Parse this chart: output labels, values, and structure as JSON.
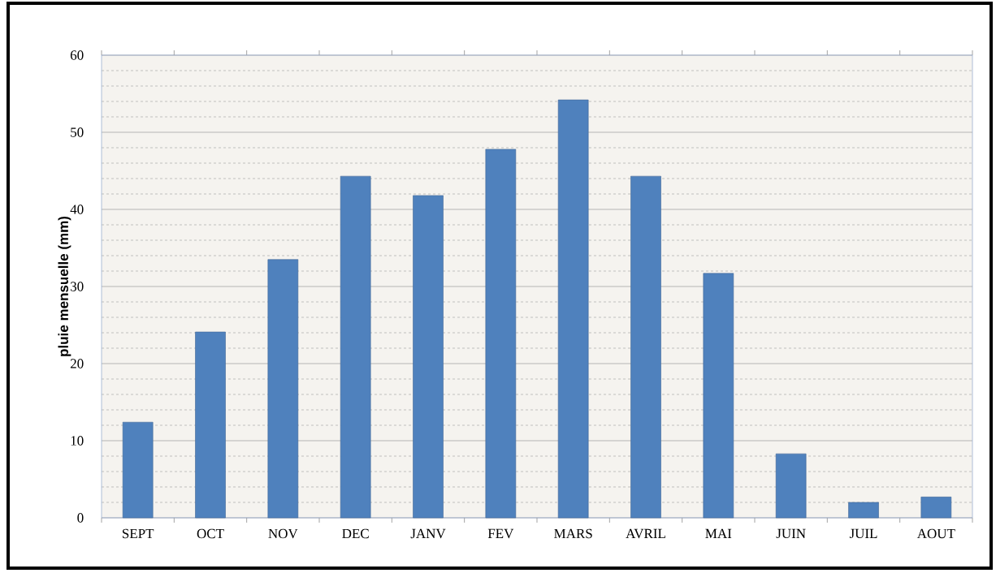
{
  "chart_data": {
    "type": "bar",
    "ylabel": "pluie mensuelle (mm)",
    "categories": [
      "SEPT",
      "OCT",
      "NOV",
      "DEC",
      "JANV",
      "FEV",
      "MARS",
      "AVRIL",
      "MAI",
      "JUIN",
      "JUIL",
      "AOUT"
    ],
    "values": [
      12.4,
      24.1,
      33.5,
      44.3,
      41.8,
      47.8,
      54.2,
      44.3,
      31.7,
      8.3,
      2.0,
      2.7
    ],
    "color": "#4f81bd",
    "ylim": [
      0,
      60
    ],
    "yticks": [
      0,
      10,
      20,
      30,
      40,
      50,
      60
    ],
    "grid": "y"
  }
}
